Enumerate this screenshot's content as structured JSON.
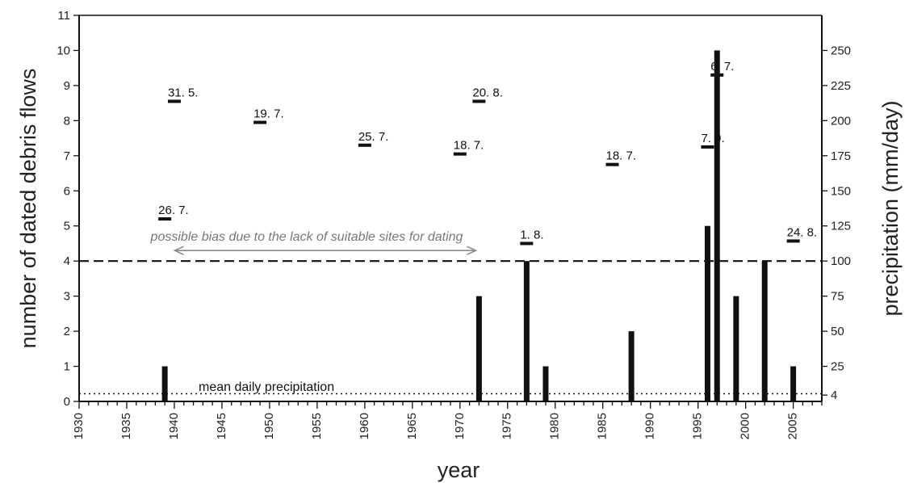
{
  "chart_data": {
    "type": "bar",
    "xlabel": "year",
    "ylabel": "number of dated debris flows",
    "y2label": "precipitation (mm/day)",
    "xlim": [
      1930,
      2008
    ],
    "ylim": [
      0,
      11
    ],
    "x_ticks": [
      1930,
      1935,
      1940,
      1945,
      1950,
      1955,
      1960,
      1965,
      1970,
      1975,
      1980,
      1985,
      1990,
      1995,
      2000,
      2005
    ],
    "y_ticks": [
      0,
      1,
      2,
      3,
      4,
      5,
      6,
      7,
      8,
      9,
      10,
      11
    ],
    "y2_ticks": [
      {
        "label": "4",
        "y": 0.18
      },
      {
        "label": "25",
        "y": 1
      },
      {
        "label": "50",
        "y": 2
      },
      {
        "label": "75",
        "y": 3
      },
      {
        "label": "100",
        "y": 4
      },
      {
        "label": "125",
        "y": 5
      },
      {
        "label": "150",
        "y": 6
      },
      {
        "label": "175",
        "y": 7
      },
      {
        "label": "200",
        "y": 8
      },
      {
        "label": "225",
        "y": 9
      },
      {
        "label": "250",
        "y": 10
      }
    ],
    "grid": false,
    "series": [
      {
        "name": "number of dated debris flows",
        "x": [
          1939,
          1972,
          1977,
          1979,
          1988,
          1996,
          1997,
          1999,
          2002,
          2005
        ],
        "values": [
          1,
          3,
          4,
          1,
          2,
          5,
          10,
          3,
          4,
          1
        ]
      }
    ],
    "precipitation_events": [
      {
        "x": 1939,
        "y": 5.2,
        "label": "26. 7."
      },
      {
        "x": 1940,
        "y": 8.55,
        "label": "31. 5."
      },
      {
        "x": 1949,
        "y": 7.95,
        "label": "19. 7."
      },
      {
        "x": 1960,
        "y": 7.3,
        "label": "25. 7."
      },
      {
        "x": 1970,
        "y": 7.05,
        "label": "18. 7."
      },
      {
        "x": 1972,
        "y": 8.55,
        "label": "20. 8."
      },
      {
        "x": 1977,
        "y": 4.5,
        "label": "1. 8."
      },
      {
        "x": 1986,
        "y": 6.75,
        "label": "18. 7."
      },
      {
        "x": 1996,
        "y": 7.25,
        "label": "7. 9."
      },
      {
        "x": 1997,
        "y": 9.3,
        "label": "6. 7."
      },
      {
        "x": 2005,
        "y": 4.57,
        "label": "24. 8."
      }
    ],
    "threshold_line": {
      "y": 4,
      "style": "dashed"
    },
    "mean_line": {
      "y": 0.22,
      "label": "mean daily precipitation",
      "style": "dotted"
    },
    "bias_annotation": {
      "text": "possible bias due to the lack of suitable sites for dating",
      "from": 1939.7,
      "to": 1972
    }
  }
}
